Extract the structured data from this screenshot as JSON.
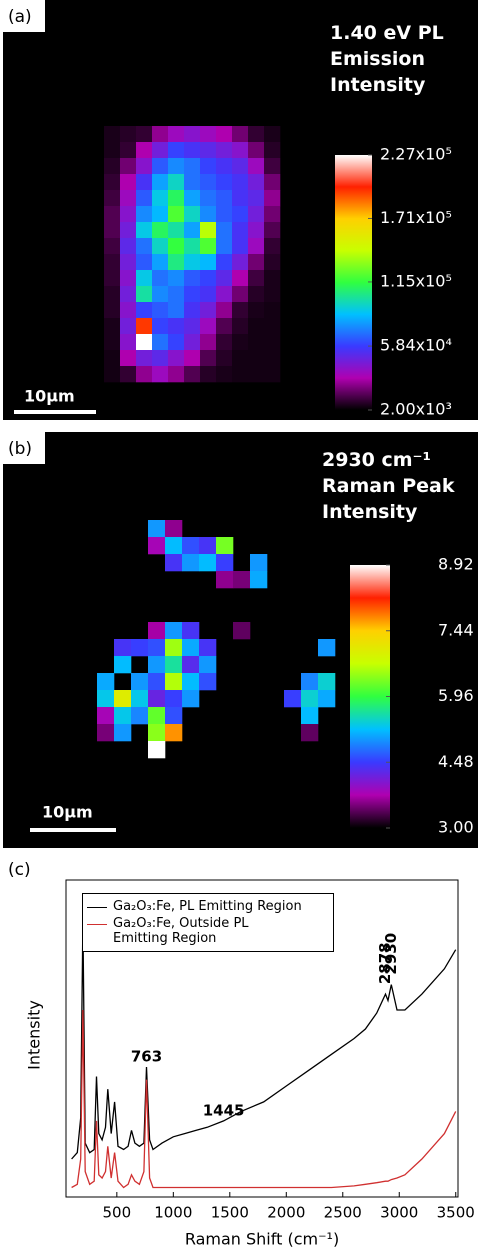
{
  "chart_data": [
    {
      "type": "heatmap",
      "panel_label": "(a)",
      "title": "1.40 eV PL Emission Intensity",
      "scale_bar": "10µm",
      "zlim": [
        2000,
        227000
      ],
      "zticks": [
        {
          "value": 2000,
          "label": "2.00x10³"
        },
        {
          "value": 58400,
          "label": "5.84x10⁴"
        },
        {
          "value": 115000,
          "label": "1.15x10⁵"
        },
        {
          "value": 171000,
          "label": "1.71x10⁵"
        },
        {
          "value": 227000,
          "label": "2.27x10⁵"
        }
      ],
      "colors": [
        "#000000",
        "#b000b0",
        "#3a3aff",
        "#00c0ff",
        "#30ff40",
        "#c8ff00",
        "#ffd000",
        "#ff2000",
        "#ffffff"
      ],
      "z": [
        [
          6000,
          8000,
          10000,
          25000,
          35000,
          40000,
          35000,
          30000,
          20000,
          10000,
          6000
        ],
        [
          6000,
          10000,
          30000,
          45000,
          60000,
          55000,
          50000,
          45000,
          40000,
          20000,
          8000
        ],
        [
          8000,
          20000,
          40000,
          65000,
          75000,
          70000,
          60000,
          55000,
          50000,
          35000,
          12000
        ],
        [
          10000,
          30000,
          55000,
          80000,
          95000,
          70000,
          65000,
          60000,
          55000,
          45000,
          20000
        ],
        [
          12000,
          35000,
          65000,
          90000,
          110000,
          80000,
          70000,
          65000,
          55000,
          50000,
          25000
        ],
        [
          15000,
          40000,
          75000,
          85000,
          120000,
          95000,
          75000,
          65000,
          60000,
          45000,
          20000
        ],
        [
          15000,
          45000,
          90000,
          110000,
          100000,
          80000,
          140000,
          70000,
          55000,
          40000,
          15000
        ],
        [
          12000,
          50000,
          70000,
          95000,
          115000,
          100000,
          120000,
          70000,
          55000,
          35000,
          10000
        ],
        [
          10000,
          45000,
          65000,
          80000,
          105000,
          90000,
          85000,
          60000,
          45000,
          20000,
          8000
        ],
        [
          10000,
          40000,
          90000,
          70000,
          75000,
          65000,
          60000,
          50000,
          30000,
          12000,
          6000
        ],
        [
          8000,
          45000,
          100000,
          75000,
          70000,
          60000,
          55000,
          40000,
          20000,
          8000,
          6000
        ],
        [
          8000,
          40000,
          60000,
          65000,
          70000,
          55000,
          45000,
          25000,
          10000,
          6000,
          5000
        ],
        [
          6000,
          45000,
          195000,
          60000,
          55000,
          50000,
          35000,
          15000,
          8000,
          5000,
          5000
        ],
        [
          6000,
          40000,
          227000,
          70000,
          60000,
          45000,
          25000,
          10000,
          6000,
          5000,
          5000
        ],
        [
          5000,
          30000,
          45000,
          50000,
          40000,
          30000,
          15000,
          8000,
          5000,
          5000,
          5000
        ],
        [
          5000,
          10000,
          25000,
          35000,
          25000,
          15000,
          8000,
          6000,
          5000,
          5000,
          5000
        ]
      ]
    },
    {
      "type": "heatmap",
      "panel_label": "(b)",
      "title": "2930 cm⁻¹ Raman Peak Intensity",
      "scale_bar": "10µm",
      "zlim": [
        3,
        8.92
      ],
      "zticks": [
        {
          "value": 3,
          "label": "3.00"
        },
        {
          "value": 4.48,
          "label": "4.48"
        },
        {
          "value": 5.96,
          "label": "5.96"
        },
        {
          "value": 7.44,
          "label": "7.44"
        },
        {
          "value": 8.92,
          "label": "8.92"
        }
      ],
      "colors": [
        "#000000",
        "#b000b0",
        "#3a3aff",
        "#00c0ff",
        "#30ff40",
        "#c8ff00",
        "#ffd000",
        "#ff2000",
        "#ffffff"
      ],
      "z": [
        [
          null,
          null,
          null,
          5.0,
          3.6,
          null,
          null,
          null,
          null,
          null,
          null,
          null,
          null,
          null,
          null
        ],
        [
          null,
          null,
          null,
          3.8,
          5.2,
          4.6,
          4.4,
          6.3,
          null,
          null,
          null,
          null,
          null,
          null,
          null
        ],
        [
          null,
          null,
          null,
          null,
          4.4,
          5.0,
          5.2,
          4.5,
          null,
          5.0,
          null,
          null,
          null,
          null,
          null
        ],
        [
          null,
          null,
          null,
          null,
          null,
          null,
          null,
          3.6,
          3.5,
          5.1,
          null,
          null,
          null,
          null,
          null
        ],
        [
          null,
          null,
          null,
          null,
          null,
          null,
          null,
          null,
          null,
          null,
          null,
          null,
          null,
          null,
          null
        ],
        [
          null,
          null,
          null,
          null,
          null,
          null,
          null,
          null,
          null,
          null,
          null,
          null,
          null,
          null,
          null
        ],
        [
          null,
          null,
          null,
          3.7,
          5.0,
          4.4,
          null,
          null,
          3.4,
          null,
          null,
          null,
          null,
          null,
          null
        ],
        [
          null,
          4.4,
          4.5,
          4.6,
          6.5,
          5.1,
          4.4,
          null,
          null,
          null,
          null,
          null,
          null,
          5.0,
          null
        ],
        [
          null,
          5.2,
          null,
          5.0,
          5.6,
          4.3,
          5.0,
          null,
          null,
          null,
          null,
          null,
          null,
          null,
          null
        ],
        [
          5.1,
          null,
          5.0,
          4.6,
          6.6,
          5.2,
          4.6,
          null,
          null,
          null,
          null,
          null,
          4.9,
          5.4,
          null
        ],
        [
          5.3,
          7.0,
          5.3,
          4.2,
          4.5,
          5.0,
          null,
          null,
          null,
          null,
          null,
          4.5,
          5.4,
          5.1,
          null
        ],
        [
          3.8,
          5.3,
          4.9,
          6.2,
          4.6,
          null,
          null,
          null,
          null,
          null,
          null,
          null,
          5.2,
          null,
          null
        ],
        [
          3.5,
          5.0,
          null,
          6.4,
          7.7,
          null,
          null,
          null,
          null,
          null,
          null,
          null,
          3.4,
          null,
          null
        ],
        [
          null,
          null,
          null,
          8.92,
          null,
          null,
          null,
          null,
          null,
          null,
          null,
          null,
          null,
          null,
          null
        ]
      ]
    },
    {
      "type": "line",
      "panel_label": "(c)",
      "xlabel": "Raman Shift (cm⁻¹)",
      "ylabel": "Intensity",
      "xlim": [
        50,
        3520
      ],
      "ylim": [
        0,
        100
      ],
      "xticks": [
        500,
        1000,
        1500,
        2000,
        2500,
        3000,
        3500
      ],
      "x": [
        100,
        150,
        180,
        200,
        220,
        260,
        300,
        320,
        340,
        370,
        400,
        420,
        450,
        480,
        510,
        560,
        600,
        630,
        660,
        700,
        740,
        763,
        790,
        820,
        900,
        1000,
        1100,
        1200,
        1300,
        1445,
        1600,
        1800,
        2000,
        2200,
        2400,
        2600,
        2700,
        2800,
        2878,
        2900,
        2930,
        2980,
        3050,
        3200,
        3400,
        3500
      ],
      "series": [
        {
          "name": "Ga₂O₃:Fe, PL Emitting Region",
          "color": "#000000",
          "values": [
            12,
            14,
            25,
            87,
            17,
            14,
            15,
            38,
            20,
            18,
            22,
            34,
            20,
            30,
            16,
            15,
            16,
            21,
            17,
            16,
            17,
            41,
            18,
            15,
            17,
            19,
            20,
            21,
            22,
            24,
            27,
            30,
            35,
            40,
            45,
            50,
            53,
            58,
            64,
            62,
            67,
            59,
            59,
            64,
            72,
            78
          ]
        },
        {
          "name": "Ga₂O₃:Fe, Outside PL Emitting Region",
          "color": "#d03030",
          "values": [
            3,
            4,
            12,
            59,
            8,
            4,
            5,
            24,
            7,
            6,
            8,
            16,
            6,
            14,
            5,
            3,
            4,
            7,
            5,
            4,
            8,
            37,
            6,
            3,
            3,
            3,
            3,
            3,
            3,
            3,
            3,
            3,
            3,
            3,
            3,
            3.5,
            4,
            4.5,
            5,
            5,
            5.5,
            6,
            7,
            12,
            20,
            27
          ]
        }
      ],
      "annotations": [
        {
          "text": "763",
          "x": 763
        },
        {
          "text": "1445",
          "x": 1445
        },
        {
          "text": "2878",
          "x": 2878
        },
        {
          "text": "2930",
          "x": 2930
        }
      ]
    }
  ]
}
